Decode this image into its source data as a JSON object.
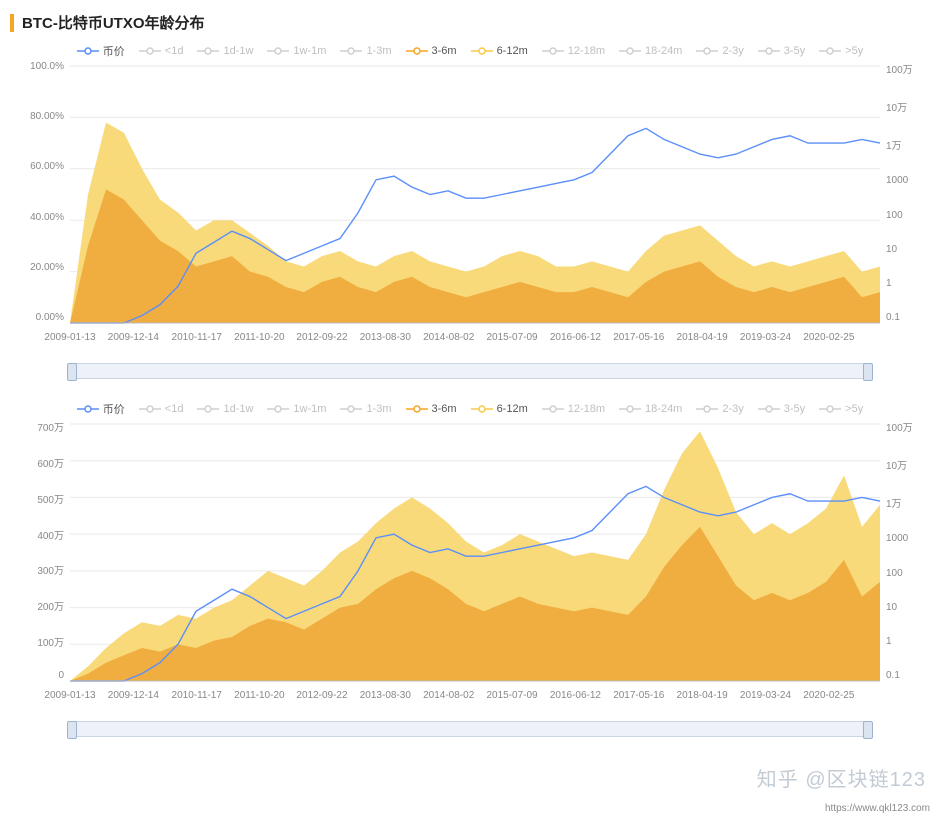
{
  "title": "BTC-比特币UTXO年龄分布",
  "accent_color": "#f5a623",
  "watermark": "知乎 @区块链123",
  "source_url": "https://www.qkl123.com",
  "legend": {
    "items": [
      {
        "key": "price",
        "label": "币价",
        "active": true,
        "color": "#5b8ff9",
        "shape": "line-circle"
      },
      {
        "key": "lt1d",
        "label": "<1d",
        "active": false,
        "color": "#bfbfbf",
        "shape": "line-circle"
      },
      {
        "key": "1d1w",
        "label": "1d-1w",
        "active": false,
        "color": "#bfbfbf",
        "shape": "line-circle"
      },
      {
        "key": "1w1m",
        "label": "1w-1m",
        "active": false,
        "color": "#bfbfbf",
        "shape": "line-circle"
      },
      {
        "key": "1_3m",
        "label": "1-3m",
        "active": false,
        "color": "#bfbfbf",
        "shape": "line-circle"
      },
      {
        "key": "3_6m",
        "label": "3-6m",
        "active": true,
        "color": "#f5a623",
        "shape": "line-circle"
      },
      {
        "key": "6_12m",
        "label": "6-12m",
        "active": true,
        "color": "#f7c948",
        "shape": "line-circle"
      },
      {
        "key": "12_18m",
        "label": "12-18m",
        "active": false,
        "color": "#bfbfbf",
        "shape": "line-circle"
      },
      {
        "key": "18_24m",
        "label": "18-24m",
        "active": false,
        "color": "#bfbfbf",
        "shape": "line-circle"
      },
      {
        "key": "2_3y",
        "label": "2-3y",
        "active": false,
        "color": "#bfbfbf",
        "shape": "line-circle"
      },
      {
        "key": "3_5y",
        "label": "3-5y",
        "active": false,
        "color": "#bfbfbf",
        "shape": "line-circle"
      },
      {
        "key": "gt5y",
        "label": ">5y",
        "active": false,
        "color": "#bfbfbf",
        "shape": "line-circle"
      }
    ]
  },
  "x_axis": {
    "labels": [
      "2009-01-13",
      "2009-12-14",
      "2010-11-17",
      "2011-10-20",
      "2012-09-22",
      "2013-08-30",
      "2014-08-02",
      "2015-07-09",
      "2016-06-12",
      "2017-05-16",
      "2018-04-19",
      "2019-03-24",
      "2020-02-25"
    ]
  },
  "chart_top": {
    "type": "stacked-area+line-logR",
    "plot_bg": "#ffffff",
    "grid_color": "#e9e9e9",
    "y_left": {
      "labels": [
        "100.0%",
        "80.00%",
        "60.00%",
        "40.00%",
        "20.00%",
        "0.00%"
      ],
      "min": 0,
      "max": 100,
      "unit": "percent"
    },
    "y_right": {
      "labels": [
        "100万",
        "10万",
        "1万",
        "1000",
        "100",
        "10",
        "1",
        "0.1"
      ],
      "scale": "log"
    },
    "series_area": [
      {
        "name": "6-12m",
        "color": "#f8d66b",
        "opacity": 0.9,
        "values": [
          0,
          50,
          78,
          74,
          60,
          48,
          43,
          36,
          40,
          40,
          35,
          30,
          24,
          22,
          26,
          28,
          24,
          22,
          26,
          28,
          24,
          22,
          20,
          22,
          26,
          28,
          26,
          22,
          22,
          24,
          22,
          20,
          28,
          34,
          36,
          38,
          32,
          26,
          22,
          24,
          22,
          24,
          26,
          28,
          20,
          22
        ]
      },
      {
        "name": "3-6m",
        "color": "#f0a93a",
        "opacity": 0.9,
        "values": [
          0,
          30,
          52,
          48,
          40,
          32,
          28,
          22,
          24,
          26,
          20,
          18,
          14,
          12,
          16,
          18,
          14,
          12,
          16,
          18,
          14,
          12,
          10,
          12,
          14,
          16,
          14,
          12,
          12,
          14,
          12,
          10,
          16,
          20,
          22,
          24,
          18,
          14,
          12,
          14,
          12,
          14,
          16,
          18,
          10,
          12
        ]
      }
    ],
    "series_line": {
      "name": "币价",
      "color": "#5b8ff9",
      "width": 1.4,
      "values_log": [
        -1,
        -1,
        -1,
        -1,
        -0.8,
        -0.5,
        0,
        0.9,
        1.2,
        1.5,
        1.3,
        1.0,
        0.7,
        0.9,
        1.1,
        1.3,
        2.0,
        2.9,
        3.0,
        2.7,
        2.5,
        2.6,
        2.4,
        2.4,
        2.5,
        2.6,
        2.7,
        2.8,
        2.9,
        3.1,
        3.6,
        4.1,
        4.3,
        4.0,
        3.8,
        3.6,
        3.5,
        3.6,
        3.8,
        4.0,
        4.1,
        3.9,
        3.9,
        3.9,
        4.0,
        3.9
      ],
      "log_min": -1,
      "log_max": 6
    }
  },
  "chart_bottom": {
    "type": "stacked-area+line-logR",
    "plot_bg": "#ffffff",
    "grid_color": "#e9e9e9",
    "y_left": {
      "labels": [
        "700万",
        "600万",
        "500万",
        "400万",
        "300万",
        "200万",
        "100万",
        "0"
      ],
      "min": 0,
      "max": 700,
      "unit": "万"
    },
    "y_right": {
      "labels": [
        "100万",
        "10万",
        "1万",
        "1000",
        "100",
        "10",
        "1",
        "0.1"
      ],
      "scale": "log"
    },
    "series_area": [
      {
        "name": "6-12m",
        "color": "#f8d66b",
        "opacity": 0.9,
        "values": [
          0,
          40,
          90,
          130,
          160,
          150,
          180,
          170,
          200,
          220,
          260,
          300,
          280,
          260,
          300,
          350,
          380,
          430,
          470,
          500,
          470,
          430,
          380,
          350,
          370,
          400,
          380,
          360,
          340,
          350,
          340,
          330,
          400,
          520,
          620,
          680,
          580,
          460,
          400,
          430,
          400,
          430,
          470,
          560,
          420,
          480
        ]
      },
      {
        "name": "3-6m",
        "color": "#f0a93a",
        "opacity": 0.9,
        "values": [
          0,
          20,
          50,
          70,
          90,
          80,
          100,
          90,
          110,
          120,
          150,
          170,
          160,
          140,
          170,
          200,
          210,
          250,
          280,
          300,
          280,
          250,
          210,
          190,
          210,
          230,
          210,
          200,
          190,
          200,
          190,
          180,
          230,
          310,
          370,
          420,
          340,
          260,
          220,
          240,
          220,
          240,
          270,
          330,
          230,
          270
        ]
      }
    ],
    "series_line": {
      "name": "币价",
      "color": "#5b8ff9",
      "width": 1.4,
      "values_log": [
        -1,
        -1,
        -1,
        -1,
        -0.8,
        -0.5,
        0,
        0.9,
        1.2,
        1.5,
        1.3,
        1.0,
        0.7,
        0.9,
        1.1,
        1.3,
        2.0,
        2.9,
        3.0,
        2.7,
        2.5,
        2.6,
        2.4,
        2.4,
        2.5,
        2.6,
        2.7,
        2.8,
        2.9,
        3.1,
        3.6,
        4.1,
        4.3,
        4.0,
        3.8,
        3.6,
        3.5,
        3.6,
        3.8,
        4.0,
        4.1,
        3.9,
        3.9,
        3.9,
        4.0,
        3.9
      ],
      "log_min": -1,
      "log_max": 6
    }
  },
  "fontsizes": {
    "title": 15,
    "legend": 11,
    "axis": 10
  }
}
